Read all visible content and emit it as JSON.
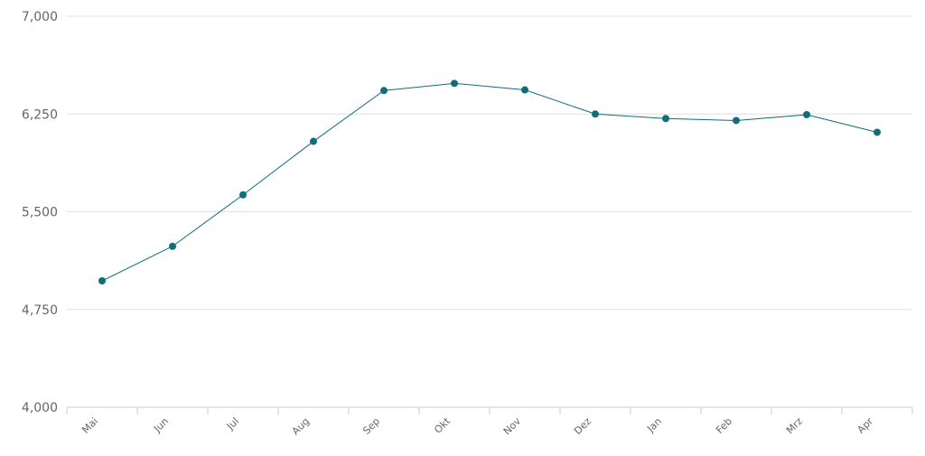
{
  "chart_data": {
    "type": "line",
    "title": "",
    "xlabel": "",
    "ylabel": "",
    "categories": [
      "Mai",
      "Jun",
      "Jul",
      "Aug",
      "Sep",
      "Okt",
      "Nov",
      "Dez",
      "Jan",
      "Feb",
      "Mrz",
      "Apr"
    ],
    "series": [
      {
        "values": [
          4970,
          5235,
          5630,
          6040,
          6430,
          6485,
          6435,
          6250,
          6215,
          6200,
          6245,
          6110
        ]
      }
    ],
    "ylim": [
      4000,
      7000
    ],
    "yticks": [
      4000,
      4750,
      5500,
      6250,
      7000
    ],
    "ytick_labels": [
      "4,000",
      "4,750",
      "5,500",
      "6,250",
      "7,000"
    ],
    "grid": true,
    "legend": "none",
    "colors": {
      "series": "#0e6e7c",
      "grid": "#e0e0e0",
      "axis": "#cccccc",
      "text": "#666666"
    }
  }
}
